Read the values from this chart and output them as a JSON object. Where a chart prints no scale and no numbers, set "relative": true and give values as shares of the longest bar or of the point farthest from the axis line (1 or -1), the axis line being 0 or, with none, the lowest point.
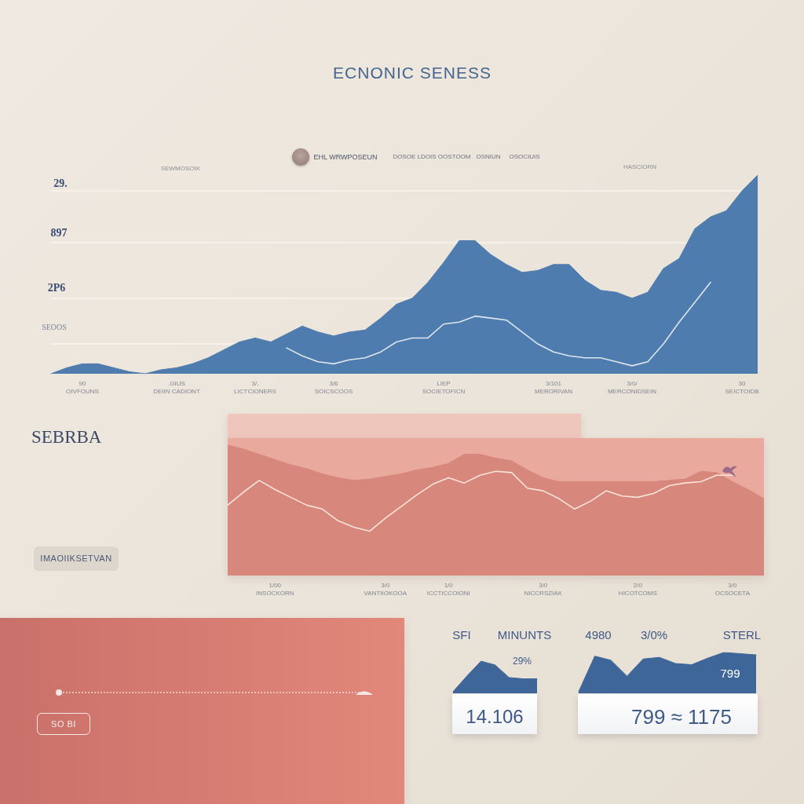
{
  "chart_data": [
    {
      "type": "area",
      "title": "ECNONIC SENESS",
      "relative": true,
      "categories": [
        null,
        null,
        "90\nOIVFOUNS",
        null,
        null,
        null,
        null,
        null,
        ".GIUS\nDEIIN CADIONT",
        null,
        null,
        null,
        null,
        "3/.\nLICTCIONERS",
        null,
        null,
        null,
        null,
        "3/6\nSOICSCOOS",
        null,
        null,
        null,
        null,
        null,
        null,
        "LIEP\nSOCIETOFICN",
        null,
        null,
        null,
        null,
        null,
        null,
        "3/101\nMERORIVAN",
        null,
        null,
        null,
        null,
        "3/0/\nMERCONIDSEIN",
        null,
        null,
        null,
        null,
        null,
        null,
        "30\nSEICTOIDB",
        null
      ],
      "series": [
        {
          "color": "#4f7cae",
          "values": [
            0,
            0.03,
            0.05,
            0.05,
            0.03,
            0.01,
            0,
            0.02,
            0.03,
            0.05,
            0.08,
            0.12,
            0.16,
            0.18,
            0.16,
            0.2,
            0.24,
            0.21,
            0.19,
            0.21,
            0.22,
            0.28,
            0.35,
            0.38,
            0.46,
            0.56,
            0.67,
            0.67,
            0.6,
            0.55,
            0.51,
            0.52,
            0.55,
            0.55,
            0.47,
            0.42,
            0.41,
            0.38,
            0.41,
            0.53,
            0.58,
            0.73,
            0.79,
            0.82,
            0.92,
            1
          ]
        },
        {
          "type": "line",
          "color": "#dde6ef",
          "values": [
            null,
            null,
            null,
            null,
            null,
            null,
            null,
            null,
            null,
            null,
            null,
            null,
            null,
            null,
            null,
            0.13,
            0.09,
            0.06,
            0.05,
            0.07,
            0.08,
            0.11,
            0.16,
            0.18,
            0.18,
            0.25,
            0.26,
            0.29,
            0.28,
            0.27,
            0.21,
            0.15,
            0.11,
            0.09,
            0.08,
            0.08,
            0.06,
            0.04,
            0.06,
            0.15,
            0.26,
            0.36,
            0.46,
            null,
            null,
            null
          ]
        }
      ],
      "ref_lines": [
        {
          "axis": "y",
          "value": 0.15,
          "color": "#f8f4ef"
        },
        {
          "axis": "y",
          "value": 0.38,
          "color": "#f8f4ef"
        },
        {
          "axis": "y",
          "value": 0.66,
          "color": "#f8f4ef"
        },
        {
          "axis": "y",
          "value": 0.92,
          "color": "#f8f4ef"
        }
      ],
      "marker": "none",
      "annotations": [
        "SEWMOSOIK",
        "HASCIORN",
        "EHL WRWPOSEUN",
        "DOSOE LDOIS OOSTOOM",
        "OSNIUN",
        "OSOCIUIS",
        "29.",
        "897",
        "2P6",
        "SEOOS"
      ]
    },
    {
      "type": "other",
      "title": "SEBRBA",
      "annotations": [
        "IMAOIIKSETVAN"
      ]
    },
    {
      "type": "area",
      "relative": true,
      "categories": [
        null,
        null,
        null,
        "1/00\nINSOCKORN",
        null,
        null,
        null,
        null,
        null,
        null,
        "3/0\nVANTIIOKOOA",
        null,
        null,
        null,
        "1/0\nICCTICCOIONI",
        null,
        null,
        null,
        null,
        null,
        "3/0\nNICCRSZIAK",
        null,
        null,
        null,
        null,
        null,
        "2/0\nHICOTCOMS",
        null,
        null,
        null,
        null,
        null,
        "3/0\nOCSOCETA",
        null,
        null
      ],
      "series": [
        {
          "color": "#d7877c",
          "values": [
            1,
            0.97,
            0.93,
            0.89,
            0.85,
            0.82,
            0.78,
            0.75,
            0.73,
            0.74,
            0.76,
            0.78,
            0.81,
            0.83,
            0.86,
            0.93,
            0.93,
            0.9,
            0.88,
            0.81,
            0.75,
            0.72,
            0.72,
            0.72,
            0.72,
            0.72,
            0.72,
            0.72,
            0.73,
            0.74,
            0.8,
            0.79,
            0.72,
            0.66,
            0.59
          ]
        },
        {
          "type": "line",
          "color": "#f7e4da",
          "values": [
            0.54,
            0.64,
            0.73,
            0.66,
            0.6,
            0.54,
            0.51,
            0.42,
            0.37,
            0.34,
            0.44,
            0.53,
            0.62,
            0.7,
            0.75,
            0.71,
            0.77,
            0.8,
            0.79,
            0.67,
            0.65,
            0.59,
            0.51,
            0.57,
            0.65,
            0.61,
            0.6,
            0.63,
            0.69,
            0.71,
            0.72,
            0.77,
            0.77,
            null,
            null
          ]
        }
      ],
      "marker": "none"
    },
    {
      "type": "other",
      "annotations": [
        "SO BI"
      ]
    },
    {
      "type": "area",
      "title": "MINUNTS",
      "relative": true,
      "categories": [
        null,
        null,
        null,
        null,
        null,
        null,
        null
      ],
      "color": "#3f6698",
      "values": [
        0.05,
        0.54,
        1,
        0.88,
        0.49,
        0.45,
        0.45
      ],
      "marker": "none",
      "annotations": [
        "SFI",
        "29%",
        "14.106"
      ]
    },
    {
      "type": "area",
      "title": "STERL",
      "relative": true,
      "categories": [
        null,
        null,
        null,
        null,
        null,
        null,
        null,
        null,
        null,
        null,
        null,
        null
      ],
      "color": "#3f6698",
      "values": [
        0.04,
        0.91,
        0.81,
        0.42,
        0.84,
        0.88,
        0.73,
        0.7,
        0.86,
        1,
        0.97,
        0.94
      ],
      "marker": "none",
      "annotations": [
        "4980",
        "3/0%",
        "799",
        "799 ≈ 1175"
      ]
    }
  ]
}
